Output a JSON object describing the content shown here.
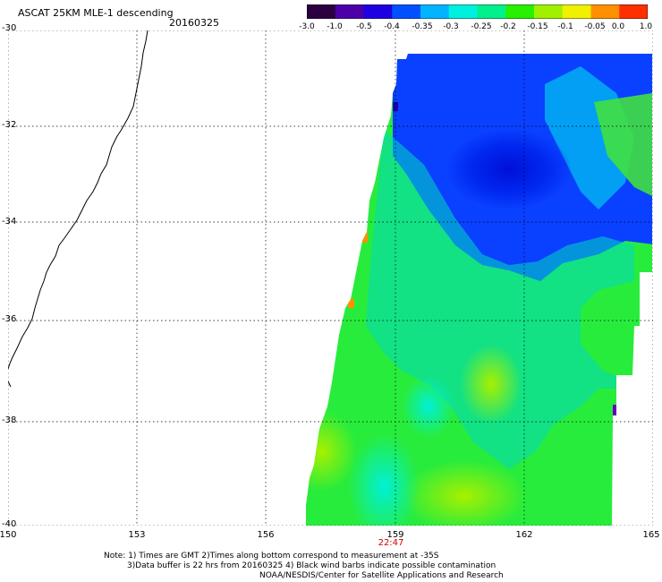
{
  "header": {
    "title": "ASCAT 25KM MLE-1 descending",
    "date": "20160325"
  },
  "colorbar": {
    "colors": [
      "#2a0040",
      "#4b00a8",
      "#1e00e0",
      "#0050ff",
      "#00b4ff",
      "#00f0e0",
      "#00f08c",
      "#28f000",
      "#a0f000",
      "#f0f000",
      "#ff9000",
      "#ff3000"
    ],
    "tick_labels": [
      "-3.0",
      "-1.0",
      "-0.5",
      "-0.4",
      "-0.35",
      "-0.3",
      "-0.25",
      "-0.2",
      "-0.15",
      "-0.1",
      "-0.05",
      "0.0",
      "1.0"
    ]
  },
  "map": {
    "lat_labels": [
      "-30",
      "-32",
      "-34",
      "-36",
      "-38",
      "-40"
    ],
    "lon_labels": [
      "150",
      "153",
      "156",
      "159",
      "162",
      "165"
    ],
    "pass_time": "22:47"
  },
  "notes": {
    "line1": "Note: 1) Times are GMT 2)Times along bottom correspond to measurement at -35S",
    "line2": "3)Data buffer is 22 hrs from 20160325 4) Black wind barbs indicate possible contamination",
    "line3": "NOAA/NESDIS/Center for Satellite Applications and Research"
  }
}
